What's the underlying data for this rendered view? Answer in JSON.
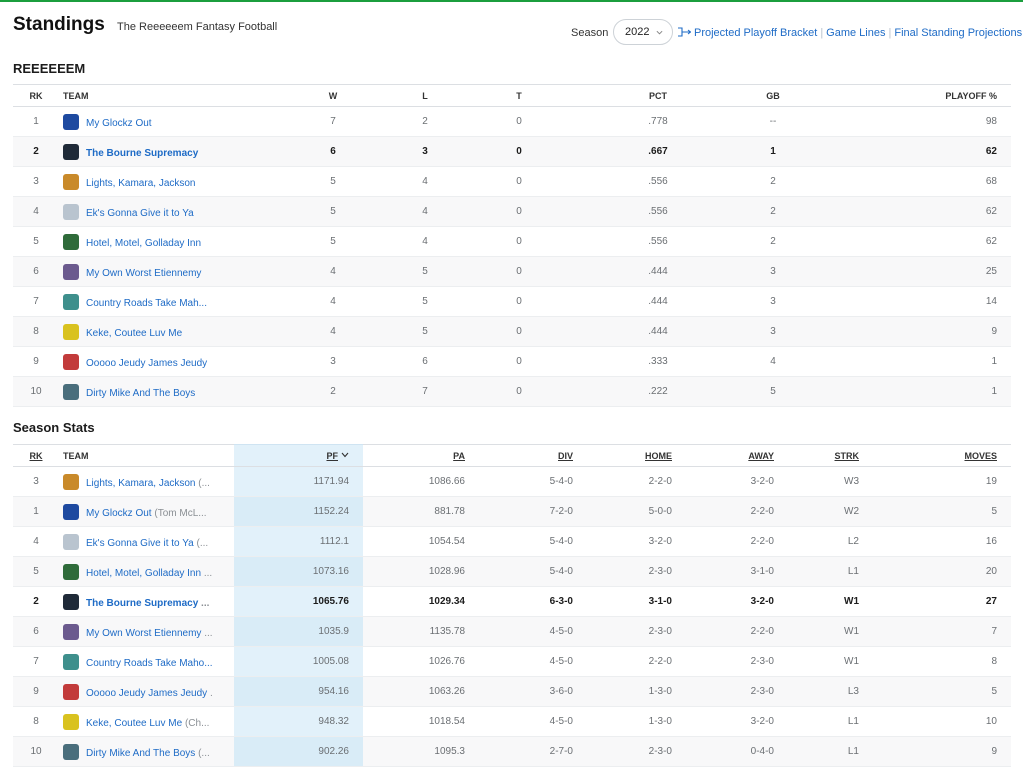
{
  "header": {
    "title": "Standings",
    "subtitle": "The Reeeeeem Fantasy Football",
    "season_label": "Season",
    "season_value": "2022",
    "links": [
      "Projected Playoff Bracket",
      "Game Lines",
      "Final Standing Projections"
    ]
  },
  "standings": {
    "title": "REEEEEEM",
    "columns": [
      "RK",
      "TEAM",
      "W",
      "L",
      "T",
      "PCT",
      "GB",
      "PLAYOFF %"
    ],
    "rows": [
      {
        "rk": "1",
        "team": "My Glockz Out",
        "w": "7",
        "l": "2",
        "t": "0",
        "pct": ".778",
        "gb": "--",
        "playoff": "98",
        "logo": "#1e4aa0",
        "mine": false
      },
      {
        "rk": "2",
        "team": "The Bourne Supremacy",
        "w": "6",
        "l": "3",
        "t": "0",
        "pct": ".667",
        "gb": "1",
        "playoff": "62",
        "logo": "#1f2a38",
        "mine": true
      },
      {
        "rk": "3",
        "team": "Lights, Kamara, Jackson",
        "w": "5",
        "l": "4",
        "t": "0",
        "pct": ".556",
        "gb": "2",
        "playoff": "68",
        "logo": "#c98a2a",
        "mine": false
      },
      {
        "rk": "4",
        "team": "Ek's Gonna Give it to Ya",
        "w": "5",
        "l": "4",
        "t": "0",
        "pct": ".556",
        "gb": "2",
        "playoff": "62",
        "logo": "#b9c4cf",
        "mine": false
      },
      {
        "rk": "5",
        "team": "Hotel, Motel, Golladay Inn",
        "w": "5",
        "l": "4",
        "t": "0",
        "pct": ".556",
        "gb": "2",
        "playoff": "62",
        "logo": "#2f6b3a",
        "mine": false
      },
      {
        "rk": "6",
        "team": "My Own Worst Etiennemy",
        "w": "4",
        "l": "5",
        "t": "0",
        "pct": ".444",
        "gb": "3",
        "playoff": "25",
        "logo": "#6b5a8e",
        "mine": false
      },
      {
        "rk": "7",
        "team": "Country Roads Take Mah...",
        "w": "4",
        "l": "5",
        "t": "0",
        "pct": ".444",
        "gb": "3",
        "playoff": "14",
        "logo": "#3e8f8c",
        "mine": false
      },
      {
        "rk": "8",
        "team": "Keke, Coutee Luv Me",
        "w": "4",
        "l": "5",
        "t": "0",
        "pct": ".444",
        "gb": "3",
        "playoff": "9",
        "logo": "#d9c21f",
        "mine": false
      },
      {
        "rk": "9",
        "team": "Ooooo Jeudy James Jeudy",
        "w": "3",
        "l": "6",
        "t": "0",
        "pct": ".333",
        "gb": "4",
        "playoff": "1",
        "logo": "#c23b3b",
        "mine": false
      },
      {
        "rk": "10",
        "team": "Dirty Mike And The Boys",
        "w": "2",
        "l": "7",
        "t": "0",
        "pct": ".222",
        "gb": "5",
        "playoff": "1",
        "logo": "#4a6e7c",
        "mine": false
      }
    ]
  },
  "season_stats": {
    "title": "Season Stats",
    "columns": [
      "RK",
      "TEAM",
      "PF",
      "PA",
      "DIV",
      "HOME",
      "AWAY",
      "STRK",
      "MOVES"
    ],
    "rows": [
      {
        "rk": "3",
        "team": "Lights, Kamara, Jackson",
        "owner": "(...",
        "pf": "1171.94",
        "pa": "1086.66",
        "div": "5-4-0",
        "home": "2-2-0",
        "away": "3-2-0",
        "strk": "W3",
        "moves": "19",
        "logo": "#c98a2a",
        "mine": false
      },
      {
        "rk": "1",
        "team": "My Glockz Out",
        "owner": "(Tom McL...",
        "pf": "1152.24",
        "pa": "881.78",
        "div": "7-2-0",
        "home": "5-0-0",
        "away": "2-2-0",
        "strk": "W2",
        "moves": "5",
        "logo": "#1e4aa0",
        "mine": false
      },
      {
        "rk": "4",
        "team": "Ek's Gonna Give it to Ya",
        "owner": "(...",
        "pf": "1112.1",
        "pa": "1054.54",
        "div": "5-4-0",
        "home": "3-2-0",
        "away": "2-2-0",
        "strk": "L2",
        "moves": "16",
        "logo": "#b9c4cf",
        "mine": false
      },
      {
        "rk": "5",
        "team": "Hotel, Motel, Golladay Inn",
        "owner": "...",
        "pf": "1073.16",
        "pa": "1028.96",
        "div": "5-4-0",
        "home": "2-3-0",
        "away": "3-1-0",
        "strk": "L1",
        "moves": "20",
        "logo": "#2f6b3a",
        "mine": false
      },
      {
        "rk": "2",
        "team": "The Bourne Supremacy",
        "owner": "...",
        "pf": "1065.76",
        "pa": "1029.34",
        "div": "6-3-0",
        "home": "3-1-0",
        "away": "3-2-0",
        "strk": "W1",
        "moves": "27",
        "logo": "#1f2a38",
        "mine": true
      },
      {
        "rk": "6",
        "team": "My Own Worst Etiennemy",
        "owner": "...",
        "pf": "1035.9",
        "pa": "1135.78",
        "div": "4-5-0",
        "home": "2-3-0",
        "away": "2-2-0",
        "strk": "W1",
        "moves": "7",
        "logo": "#6b5a8e",
        "mine": false
      },
      {
        "rk": "7",
        "team": "Country Roads Take Maho...",
        "owner": "",
        "pf": "1005.08",
        "pa": "1026.76",
        "div": "4-5-0",
        "home": "2-2-0",
        "away": "2-3-0",
        "strk": "W1",
        "moves": "8",
        "logo": "#3e8f8c",
        "mine": false
      },
      {
        "rk": "9",
        "team": "Ooooo Jeudy James Jeudy",
        "owner": ".",
        "pf": "954.16",
        "pa": "1063.26",
        "div": "3-6-0",
        "home": "1-3-0",
        "away": "2-3-0",
        "strk": "L3",
        "moves": "5",
        "logo": "#c23b3b",
        "mine": false
      },
      {
        "rk": "8",
        "team": "Keke, Coutee Luv Me",
        "owner": "(Ch...",
        "pf": "948.32",
        "pa": "1018.54",
        "div": "4-5-0",
        "home": "1-3-0",
        "away": "3-2-0",
        "strk": "L1",
        "moves": "10",
        "logo": "#d9c21f",
        "mine": false
      },
      {
        "rk": "10",
        "team": "Dirty Mike And The Boys",
        "owner": "(...",
        "pf": "902.26",
        "pa": "1095.3",
        "div": "2-7-0",
        "home": "2-3-0",
        "away": "0-4-0",
        "strk": "L1",
        "moves": "9",
        "logo": "#4a6e7c",
        "mine": false
      }
    ]
  },
  "colors": {
    "link": "#1e6bc6",
    "accent_line": "#1b9e3e",
    "sorted_column": "#e2f1fa"
  }
}
